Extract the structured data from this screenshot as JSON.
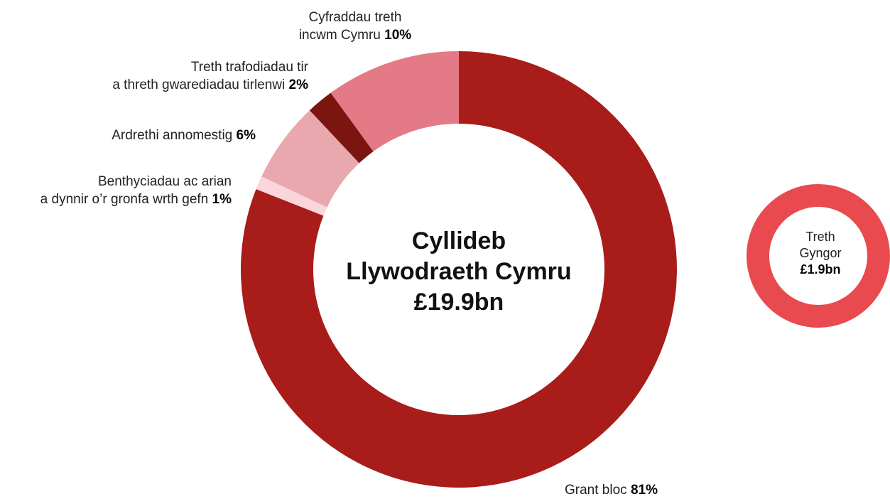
{
  "chart_data": [
    {
      "type": "pie",
      "subtype": "donut",
      "center_label": [
        "Cyllideb",
        "Llywodraeth Cymru",
        "£19.9bn"
      ],
      "slices": [
        {
          "name_lines": [
            "Cyfraddau treth",
            "incwm Cymru"
          ],
          "value_label": "10%",
          "value": 10,
          "color": "#e37a86"
        },
        {
          "name_lines": [
            "Treth trafodiadau tir",
            "a threth gwarediadau tirlenwi"
          ],
          "value_label": "2%",
          "value": 2,
          "color": "#7a1510"
        },
        {
          "name_lines": [
            "Ardrethi annomestig"
          ],
          "value_label": "6%",
          "value": 6,
          "color": "#e9a8ae"
        },
        {
          "name_lines": [
            "Benthyciadau ac arian",
            "a dynnir o’r gronfa wrth gefn"
          ],
          "value_label": "1%",
          "value": 1,
          "color": "#fad6da"
        },
        {
          "name_lines": [
            "Grant bloc"
          ],
          "value_label": "81%",
          "value": 81,
          "color": "#a81c1a"
        }
      ]
    },
    {
      "type": "pie",
      "subtype": "donut",
      "center_label": [
        "Treth",
        "Gyngor",
        "£1.9bn"
      ],
      "value": 1.9,
      "unit": "£bn",
      "color": "#e84a4f"
    }
  ]
}
